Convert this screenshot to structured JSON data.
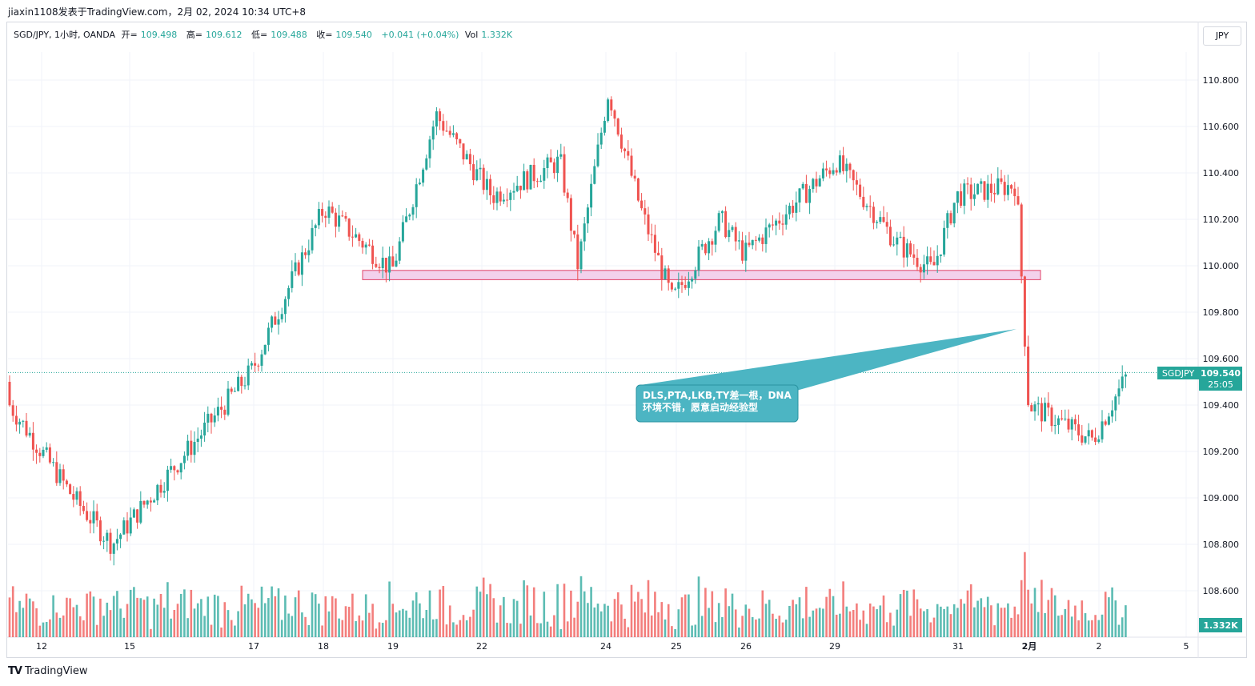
{
  "header": {
    "publisher_line": "jiaxin1108发表于TradingView.com，2月 02, 2024 10:34 UTC+8"
  },
  "legend": {
    "symbol": "SGD/JPY, 1小时, OANDA",
    "open_label": "开=",
    "open": "109.498",
    "high_label": "高=",
    "high": "109.612",
    "low_label": "低=",
    "low": "109.488",
    "close_label": "收=",
    "close": "109.540",
    "change": "+0.041 (+0.04%)",
    "vol_label": "Vol",
    "vol": "1.332K"
  },
  "currency_button": "JPY",
  "footer": {
    "logo": "TV",
    "brand": "TradingView"
  },
  "colors": {
    "up": "#26a69a",
    "down": "#ef5350",
    "zone_fill": "#f3d1ec",
    "zone_border": "#e0436a",
    "callout": "#4cb5c3"
  },
  "callout": {
    "text": "DLS,PTA,LKB,TY差一根，DNA\n环境不错，愿意启动经验型"
  },
  "price_tag": {
    "symbol": "SGDJPY",
    "price": "109.540",
    "countdown": "25:05"
  },
  "volume_tag": "1.332K",
  "chart_data": {
    "type": "candlestick",
    "ylim": [
      108.45,
      110.95
    ],
    "yticks": [
      "110.800",
      "110.600",
      "110.400",
      "110.200",
      "110.000",
      "109.800",
      "109.600",
      "109.400",
      "109.200",
      "109.000",
      "108.800",
      "108.600"
    ],
    "xticks": [
      "12",
      "15",
      "17",
      "18",
      "19",
      "22",
      "24",
      "25",
      "26",
      "29",
      "31",
      "2月",
      "2",
      "5"
    ],
    "support_zone": [
      109.94,
      109.98
    ],
    "last_price": 109.54,
    "key_closes": [
      {
        "label": "12",
        "value": 109.4
      },
      {
        "label": "13",
        "value": 109.0
      },
      {
        "label": "15",
        "value": 108.8
      },
      {
        "label": "17",
        "value": 109.55
      },
      {
        "label": "18",
        "value": 110.25
      },
      {
        "label": "19",
        "value": 109.98
      },
      {
        "label": "20",
        "value": 110.65
      },
      {
        "label": "22",
        "value": 110.3
      },
      {
        "label": "23",
        "value": 110.45
      },
      {
        "label": "23b",
        "value": 110.0
      },
      {
        "label": "24",
        "value": 110.75
      },
      {
        "label": "24b",
        "value": 110.25
      },
      {
        "label": "25",
        "value": 109.85
      },
      {
        "label": "25b",
        "value": 110.2
      },
      {
        "label": "26",
        "value": 110.05
      },
      {
        "label": "29",
        "value": 110.45
      },
      {
        "label": "30",
        "value": 110.1
      },
      {
        "label": "31",
        "value": 109.98
      },
      {
        "label": "31b",
        "value": 110.3
      },
      {
        "label": "1",
        "value": 110.35
      },
      {
        "label": "2月",
        "value": 109.4
      },
      {
        "label": "2",
        "value": 109.25
      },
      {
        "label": "2b",
        "value": 109.54
      }
    ]
  }
}
